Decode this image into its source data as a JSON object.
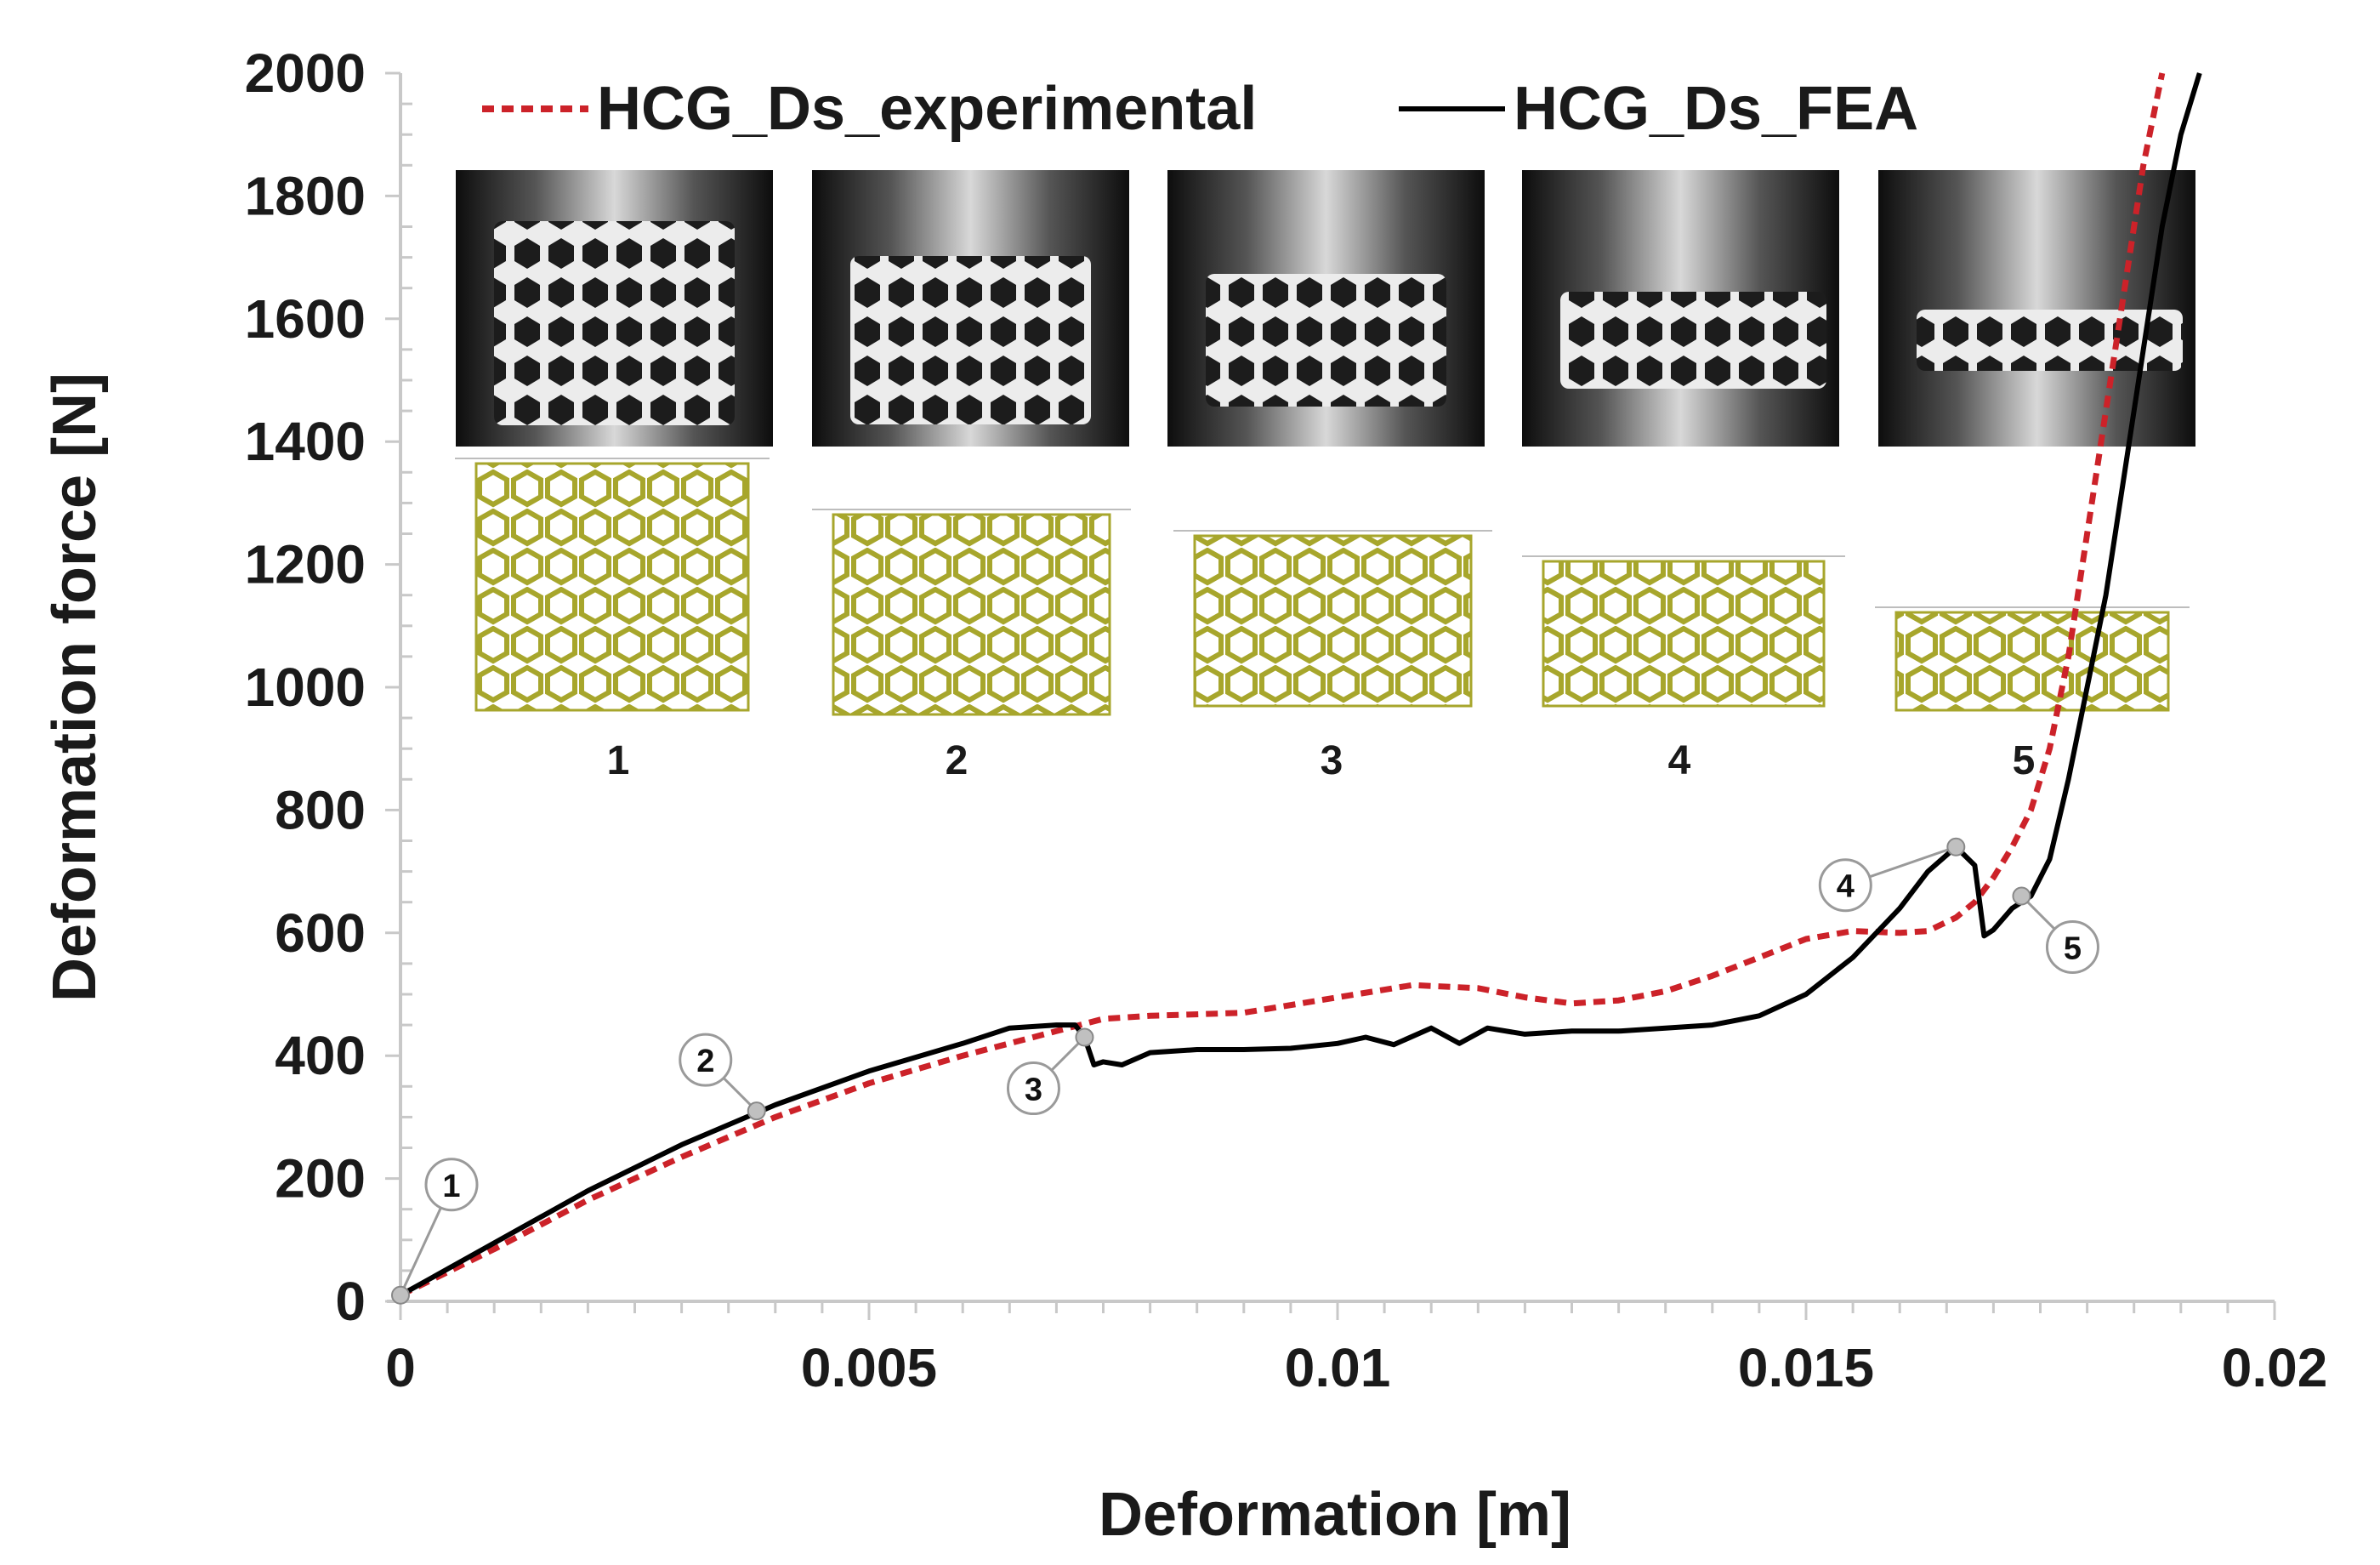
{
  "chart_data": {
    "type": "line",
    "title": "",
    "xlabel": "Deformation [m]",
    "ylabel": "Deformation force [N]",
    "xlim": [
      0,
      0.02
    ],
    "ylim": [
      0,
      2000
    ],
    "x_ticks": [
      0,
      0.005,
      0.01,
      0.015,
      0.02
    ],
    "x_tick_labels": [
      "0",
      "0.005",
      "0.01",
      "0.015",
      "0.02"
    ],
    "y_ticks": [
      0,
      200,
      400,
      600,
      800,
      1000,
      1200,
      1400,
      1600,
      1800,
      2000
    ],
    "y_tick_labels": [
      "0",
      "200",
      "400",
      "600",
      "800",
      "1000",
      "1200",
      "1400",
      "1600",
      "1800",
      "2000"
    ],
    "legend_position": "top",
    "series": [
      {
        "name": "HCG_Ds_experimental",
        "color": "#cc2229",
        "style": "dashed",
        "x": [
          0,
          0.001,
          0.002,
          0.003,
          0.004,
          0.005,
          0.006,
          0.007,
          0.0075,
          0.008,
          0.009,
          0.01,
          0.0108,
          0.0115,
          0.012,
          0.0125,
          0.013,
          0.0135,
          0.014,
          0.0145,
          0.015,
          0.0155,
          0.016,
          0.0163,
          0.0166,
          0.0168,
          0.017,
          0.0172,
          0.0174,
          0.0176,
          0.0178,
          0.018,
          0.0182,
          0.0184,
          0.0186,
          0.0188
        ],
        "y": [
          10,
          85,
          165,
          235,
          300,
          355,
          400,
          440,
          460,
          465,
          470,
          495,
          515,
          510,
          495,
          485,
          490,
          505,
          530,
          560,
          590,
          603,
          600,
          603,
          625,
          650,
          690,
          740,
          800,
          900,
          1050,
          1250,
          1450,
          1650,
          1850,
          2000
        ]
      },
      {
        "name": "HCG_Ds_FEA",
        "color": "#000000",
        "style": "solid",
        "x": [
          0,
          0.001,
          0.002,
          0.003,
          0.004,
          0.005,
          0.006,
          0.0065,
          0.007,
          0.0072,
          0.0073,
          0.0074,
          0.0075,
          0.0077,
          0.008,
          0.0085,
          0.009,
          0.0095,
          0.01,
          0.0103,
          0.0106,
          0.011,
          0.0113,
          0.0116,
          0.012,
          0.0125,
          0.013,
          0.0135,
          0.014,
          0.0145,
          0.015,
          0.0155,
          0.016,
          0.0163,
          0.0166,
          0.0168,
          0.0169,
          0.017,
          0.0172,
          0.0174,
          0.0176,
          0.0178,
          0.018,
          0.0182,
          0.0184,
          0.0186,
          0.0188,
          0.019,
          0.0192
        ],
        "y": [
          10,
          95,
          180,
          255,
          320,
          375,
          420,
          445,
          450,
          450,
          430,
          385,
          390,
          385,
          405,
          410,
          410,
          412,
          420,
          430,
          418,
          445,
          420,
          445,
          435,
          440,
          440,
          445,
          450,
          465,
          500,
          560,
          640,
          700,
          740,
          710,
          595,
          605,
          640,
          660,
          720,
          850,
          1000,
          1150,
          1350,
          1550,
          1750,
          1900,
          2000
        ]
      }
    ],
    "annotations": [
      {
        "label": "1",
        "x": 0.0,
        "y": 10,
        "series": "HCG_Ds_FEA"
      },
      {
        "label": "2",
        "x": 0.0038,
        "y": 310,
        "series": "HCG_Ds_FEA"
      },
      {
        "label": "3",
        "x": 0.0073,
        "y": 430,
        "series": "HCG_Ds_FEA"
      },
      {
        "label": "4",
        "x": 0.0166,
        "y": 740,
        "series": "HCG_Ds_FEA"
      },
      {
        "label": "5",
        "x": 0.0173,
        "y": 660,
        "series": "HCG_Ds_FEA"
      }
    ],
    "inset_stages": [
      "1",
      "2",
      "3",
      "4",
      "5"
    ]
  }
}
